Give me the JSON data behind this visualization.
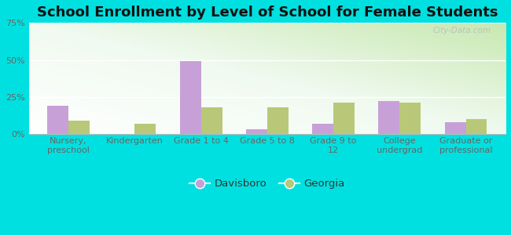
{
  "title": "School Enrollment by Level of School for Female Students",
  "categories": [
    "Nursery,\npreschool",
    "Kindergarten",
    "Grade 1 to 4",
    "Grade 5 to 8",
    "Grade 9 to\n12",
    "College\nundergrad",
    "Graduate or\nprofessional"
  ],
  "davisboro": [
    19,
    0,
    49,
    3,
    7,
    22,
    8
  ],
  "georgia": [
    9,
    7,
    18,
    18,
    21,
    21,
    10
  ],
  "davisboro_color": "#c8a0d8",
  "georgia_color": "#b8c878",
  "background_outer": "#00e0e0",
  "ylim": [
    0,
    75
  ],
  "yticks": [
    0,
    25,
    50,
    75
  ],
  "ytick_labels": [
    "0%",
    "25%",
    "50%",
    "75%"
  ],
  "bar_width": 0.32,
  "legend_labels": [
    "Davisboro",
    "Georgia"
  ],
  "title_fontsize": 13,
  "tick_fontsize": 8.0,
  "watermark": "City-Data.com"
}
